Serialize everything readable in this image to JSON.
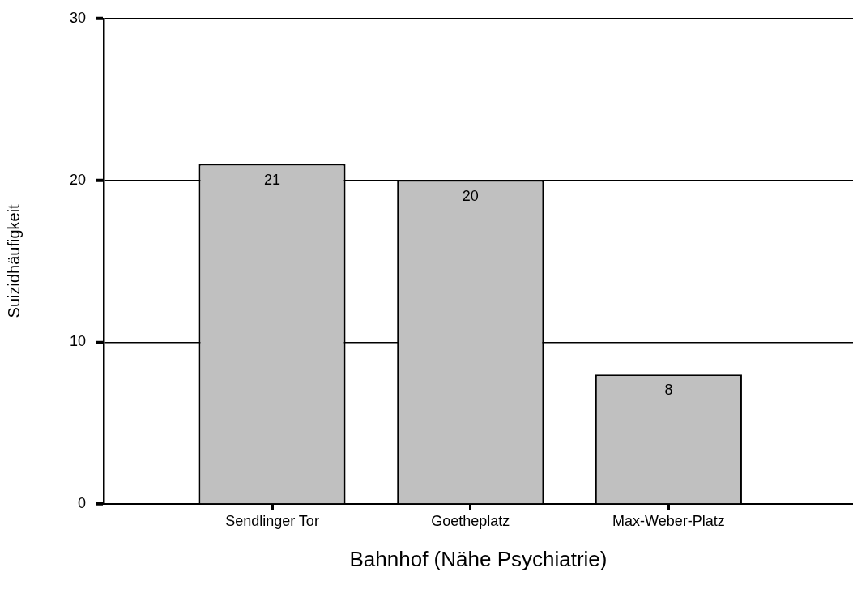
{
  "chart_data": {
    "type": "bar",
    "categories": [
      "Sendlinger Tor",
      "Goetheplatz",
      "Max-Weber-Platz"
    ],
    "values": [
      21,
      20,
      8
    ],
    "color": "#c0c0c0",
    "xlabel": "Bahnhof (Nähe Psychiatrie)",
    "ylabel": "Suizidhäufigkeit",
    "ylim": [
      0,
      30
    ],
    "yticks": [
      0,
      10,
      20,
      30
    ],
    "grid": "y",
    "data_labels": true
  }
}
